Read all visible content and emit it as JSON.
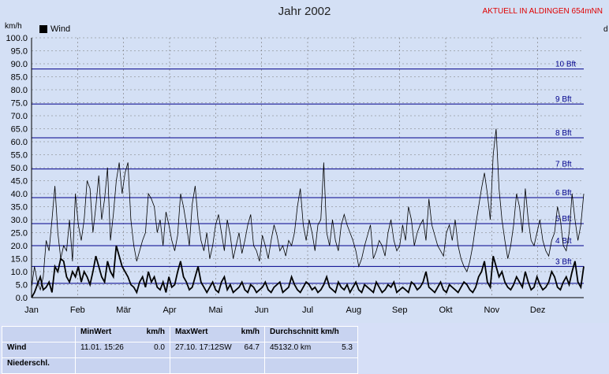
{
  "title": "Jahr 2002",
  "badge": "AKTUELL IN ALDINGEN 654mNN",
  "unit_left": "km/h",
  "unit_right": "d",
  "chart_data": {
    "type": "line",
    "title": "Jahr 2002",
    "ylabel": "km/h",
    "ylim": [
      0,
      100
    ],
    "yticks": [
      "0.0",
      "5.0",
      "10.0",
      "15.0",
      "20.0",
      "25.0",
      "30.0",
      "35.0",
      "40.0",
      "45.0",
      "50.0",
      "55.0",
      "60.0",
      "65.0",
      "70.0",
      "75.0",
      "80.0",
      "85.0",
      "90.0",
      "95.0",
      "100.0"
    ],
    "months": [
      "Jan",
      "Feb",
      "Mär",
      "Apr",
      "Mai",
      "Jun",
      "Jul",
      "Aug",
      "Sep",
      "Okt",
      "Nov",
      "Dez"
    ],
    "legend": [
      {
        "name": "Wind",
        "color": "#000000"
      }
    ],
    "beaufort": [
      {
        "label": "3 Bft",
        "value": 12
      },
      {
        "label": "4 Bft",
        "value": 20
      },
      {
        "label": "5 Bft",
        "value": 28.5
      },
      {
        "label": "6 Bft",
        "value": 38.5
      },
      {
        "label": "7 Bft",
        "value": 49.5
      },
      {
        "label": "8 Bft",
        "value": 61.5
      },
      {
        "label": "9 Bft",
        "value": 74.5
      },
      {
        "label": "10 Bft",
        "value": 88
      },
      {
        "label": "",
        "value": 5.5
      }
    ],
    "series": [
      {
        "name": "Wind",
        "gust": [
          4,
          12,
          6,
          3,
          8,
          22,
          18,
          30,
          43,
          25,
          15,
          20,
          18,
          30,
          14,
          40,
          28,
          22,
          30,
          45,
          42,
          25,
          35,
          47,
          30,
          38,
          50,
          22,
          32,
          45,
          52,
          40,
          48,
          52,
          30,
          20,
          14,
          18,
          22,
          25,
          40,
          38,
          35,
          25,
          30,
          20,
          33,
          28,
          22,
          18,
          24,
          40,
          35,
          28,
          20,
          36,
          43,
          30,
          22,
          18,
          25,
          15,
          20,
          28,
          32,
          25,
          18,
          30,
          24,
          15,
          20,
          25,
          17,
          22,
          28,
          32,
          20,
          18,
          14,
          24,
          20,
          15,
          22,
          28,
          24,
          18,
          20,
          16,
          22,
          20,
          25,
          35,
          42,
          28,
          22,
          30,
          25,
          18,
          28,
          30,
          52,
          25,
          20,
          30,
          22,
          18,
          28,
          32,
          28,
          25,
          22,
          18,
          12,
          15,
          20,
          24,
          28,
          15,
          18,
          22,
          20,
          16,
          25,
          30,
          22,
          18,
          20,
          28,
          22,
          35,
          30,
          20,
          25,
          28,
          30,
          22,
          38,
          28,
          24,
          20,
          18,
          16,
          25,
          28,
          22,
          30,
          20,
          15,
          12,
          10,
          14,
          20,
          28,
          35,
          42,
          48,
          40,
          30,
          55,
          65,
          42,
          30,
          22,
          15,
          20,
          28,
          40,
          35,
          25,
          42,
          30,
          22,
          20,
          25,
          30,
          22,
          18,
          16,
          22,
          25,
          35,
          30,
          20,
          18,
          25,
          40,
          30,
          22,
          28,
          40
        ],
        "avg": [
          0,
          2,
          5,
          8,
          3,
          4,
          6,
          2,
          12,
          10,
          15,
          14,
          8,
          6,
          10,
          8,
          12,
          6,
          10,
          8,
          5,
          10,
          16,
          12,
          8,
          6,
          14,
          10,
          8,
          20,
          16,
          12,
          10,
          8,
          5,
          4,
          2,
          6,
          8,
          4,
          10,
          6,
          8,
          4,
          3,
          6,
          2,
          8,
          4,
          5,
          10,
          14,
          8,
          6,
          3,
          4,
          8,
          12,
          6,
          4,
          2,
          4,
          6,
          3,
          2,
          6,
          8,
          3,
          5,
          2,
          3,
          4,
          6,
          3,
          2,
          5,
          4,
          2,
          3,
          4,
          6,
          3,
          2,
          4,
          5,
          6,
          2,
          3,
          4,
          8,
          5,
          3,
          2,
          4,
          6,
          5,
          3,
          4,
          2,
          3,
          5,
          8,
          4,
          3,
          2,
          6,
          4,
          3,
          5,
          2,
          4,
          6,
          3,
          2,
          5,
          4,
          3,
          2,
          6,
          4,
          2,
          3,
          5,
          4,
          6,
          2,
          3,
          4,
          3,
          2,
          6,
          5,
          3,
          4,
          6,
          10,
          4,
          3,
          2,
          4,
          6,
          3,
          2,
          5,
          4,
          3,
          2,
          4,
          6,
          5,
          3,
          2,
          4,
          8,
          10,
          14,
          6,
          4,
          16,
          12,
          8,
          10,
          6,
          4,
          3,
          5,
          8,
          6,
          4,
          10,
          6,
          3,
          4,
          8,
          5,
          3,
          4,
          6,
          10,
          8,
          4,
          3,
          6,
          8,
          5,
          10,
          14,
          6,
          4,
          12
        ]
      }
    ]
  },
  "stats": {
    "headers": {
      "min": "MinWert",
      "min_unit": "km/h",
      "max": "MaxWert",
      "max_unit": "km/h",
      "avg": "Durchschnitt km/h"
    },
    "rows": [
      {
        "label": "Wind",
        "min_date": "11.01.  15:26",
        "min_val": "0.0",
        "max_date": "27.10.  17:12SW",
        "max_val": "64.7",
        "avg_km": "45132.0 km",
        "avg_val": "5.3"
      },
      {
        "label": "Niederschl.",
        "min_date": "",
        "min_val": "",
        "max_date": "",
        "max_val": "",
        "avg_km": "",
        "avg_val": ""
      }
    ]
  }
}
